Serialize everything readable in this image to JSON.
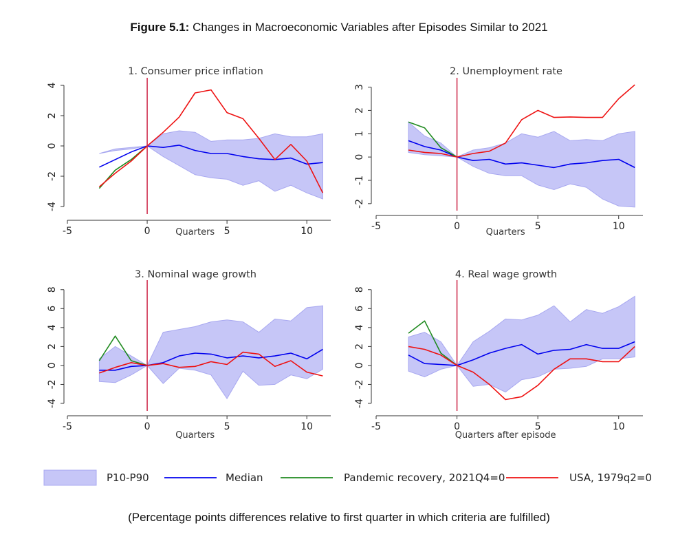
{
  "figure": {
    "title_bold": "Figure 5.1:",
    "title_rest": " Changes in Macroeconomic Variables after Episodes Similar to 2021",
    "footnote": "(Percentage points differences relative to first quarter in which criteria are fulfilled)"
  },
  "legend": [
    {
      "label": "P10-P90",
      "kind": "band",
      "color": "#c6c6f7",
      "edge": "#a8a8f0"
    },
    {
      "label": "Median",
      "kind": "line",
      "color": "#0000ee"
    },
    {
      "label": "Pandemic recovery, 2021Q4=0",
      "kind": "line",
      "color": "#1f8a1f"
    },
    {
      "label": "USA, 1979q2=0",
      "kind": "line",
      "color": "#ee1111"
    }
  ],
  "colors": {
    "band": "#c6c6f7",
    "band_edge": "#a8a8f0",
    "median": "#0000ee",
    "pandemic": "#1f8a1f",
    "usa": "#ee1111",
    "vline": "#cc2244"
  },
  "chart_data": [
    {
      "type": "line",
      "title": "1. Consumer price inflation",
      "xlabel": "Quarters",
      "xlim": [
        -5,
        11.5
      ],
      "xticks": [
        -5,
        0,
        5,
        10
      ],
      "ylim": [
        -4.5,
        4.5
      ],
      "yticks": [
        -4,
        -2,
        0,
        2,
        4
      ],
      "ytick_labels": [
        "-4",
        "-2",
        "0",
        "2",
        "4"
      ],
      "x": [
        -3,
        -2,
        -1,
        0,
        1,
        2,
        3,
        4,
        5,
        6,
        7,
        8,
        9,
        10,
        11
      ],
      "band": {
        "name": "P10-P90",
        "low": [
          -0.5,
          -0.3,
          -0.2,
          0,
          -0.7,
          -1.3,
          -1.9,
          -2.1,
          -2.2,
          -2.6,
          -2.3,
          -3.0,
          -2.6,
          -3.1,
          -3.5
        ],
        "high": [
          -0.5,
          -0.2,
          -0.1,
          0,
          0.8,
          1.0,
          0.9,
          0.3,
          0.4,
          0.4,
          0.5,
          0.8,
          0.6,
          0.6,
          0.8
        ]
      },
      "series": [
        {
          "name": "Median",
          "values": [
            -1.4,
            -0.9,
            -0.4,
            0,
            -0.1,
            0.05,
            -0.3,
            -0.5,
            -0.5,
            -0.7,
            -0.85,
            -0.9,
            -0.8,
            -1.2,
            -1.1
          ]
        },
        {
          "name": "Pandemic recovery, 2021Q4=0",
          "values": [
            -2.8,
            -1.6,
            -0.9,
            0,
            null,
            null,
            null,
            null,
            null,
            null,
            null,
            null,
            null,
            null,
            null
          ]
        },
        {
          "name": "USA, 1979q2=0",
          "values": [
            -2.7,
            -1.8,
            -1.0,
            0,
            0.9,
            1.9,
            3.5,
            3.7,
            2.2,
            1.8,
            0.5,
            -0.9,
            0.1,
            -1.0,
            -3.1
          ]
        }
      ]
    },
    {
      "type": "line",
      "title": "2. Unemployment rate",
      "xlabel": "Quarters",
      "xlim": [
        -5,
        11.5
      ],
      "xticks": [
        -5,
        0,
        5,
        10
      ],
      "ylim": [
        -2.3,
        3.4
      ],
      "yticks": [
        -2,
        -1,
        0,
        1,
        2,
        3
      ],
      "ytick_labels": [
        "-2",
        "-1",
        "0",
        "1",
        "2",
        "3"
      ],
      "x": [
        -3,
        -2,
        -1,
        0,
        1,
        2,
        3,
        4,
        5,
        6,
        7,
        8,
        9,
        10,
        11
      ],
      "band": {
        "name": "P10-P90",
        "low": [
          0.2,
          0.1,
          0.05,
          0,
          -0.4,
          -0.7,
          -0.8,
          -0.8,
          -1.2,
          -1.4,
          -1.15,
          -1.3,
          -1.8,
          -2.1,
          -2.15
        ],
        "high": [
          1.5,
          0.9,
          0.6,
          0,
          0.3,
          0.4,
          0.6,
          1.0,
          0.85,
          1.1,
          0.7,
          0.75,
          0.7,
          1.0,
          1.1
        ]
      },
      "series": [
        {
          "name": "Median",
          "values": [
            0.7,
            0.45,
            0.3,
            0,
            -0.15,
            -0.1,
            -0.3,
            -0.25,
            -0.35,
            -0.45,
            -0.3,
            -0.25,
            -0.15,
            -0.1,
            -0.45
          ]
        },
        {
          "name": "Pandemic recovery, 2021Q4=0",
          "values": [
            1.5,
            1.25,
            0.4,
            0,
            null,
            null,
            null,
            null,
            null,
            null,
            null,
            null,
            null,
            null,
            null
          ]
        },
        {
          "name": "USA, 1979q2=0",
          "values": [
            0.3,
            0.2,
            0.15,
            0,
            0.15,
            0.25,
            0.6,
            1.6,
            2.0,
            1.7,
            1.72,
            1.7,
            1.7,
            2.5,
            3.1
          ]
        }
      ]
    },
    {
      "type": "line",
      "title": "3. Nominal wage growth",
      "xlabel": "Quarters",
      "xlim": [
        -5,
        11.5
      ],
      "xticks": [
        -5,
        0,
        5,
        10
      ],
      "ylim": [
        -4.8,
        9.0
      ],
      "yticks": [
        -4,
        -2,
        0,
        2,
        4,
        6,
        8
      ],
      "ytick_labels": [
        "-4",
        "-2",
        "0",
        "2",
        "4",
        "6",
        "8"
      ],
      "x": [
        -3,
        -2,
        -1,
        0,
        1,
        2,
        3,
        4,
        5,
        6,
        7,
        8,
        9,
        10,
        11
      ],
      "band": {
        "name": "P10-P90",
        "low": [
          -1.7,
          -1.8,
          -1.0,
          0,
          -1.9,
          -0.3,
          -0.5,
          -1.0,
          -3.5,
          -0.6,
          -2.1,
          -2.0,
          -1.0,
          -1.4,
          -0.4
        ],
        "high": [
          0.7,
          2.0,
          1.0,
          0,
          3.5,
          3.8,
          4.1,
          4.6,
          4.8,
          4.6,
          3.5,
          4.9,
          4.7,
          6.1,
          6.3
        ]
      },
      "series": [
        {
          "name": "Median",
          "values": [
            -0.5,
            -0.5,
            -0.1,
            0,
            0.3,
            1.0,
            1.3,
            1.2,
            0.8,
            1.0,
            0.8,
            1.0,
            1.3,
            0.7,
            1.7
          ]
        },
        {
          "name": "Pandemic recovery, 2021Q4=0",
          "values": [
            0.5,
            3.1,
            0.5,
            0,
            null,
            null,
            null,
            null,
            null,
            null,
            null,
            null,
            null,
            null,
            null
          ]
        },
        {
          "name": "USA, 1979q2=0",
          "values": [
            -0.8,
            -0.2,
            0.3,
            0,
            0.2,
            -0.2,
            -0.1,
            0.4,
            0.1,
            1.4,
            1.2,
            -0.1,
            0.5,
            -0.7,
            -1.1
          ]
        }
      ]
    },
    {
      "type": "line",
      "title": "4. Real wage growth",
      "xlabel": "Quarters after episode",
      "xlim": [
        -5,
        11.5
      ],
      "xticks": [
        -5,
        0,
        5,
        10
      ],
      "ylim": [
        -4.8,
        9.0
      ],
      "yticks": [
        -4,
        -2,
        0,
        2,
        4,
        6,
        8
      ],
      "ytick_labels": [
        "-4",
        "-2",
        "0",
        "2",
        "4",
        "6",
        "8"
      ],
      "x": [
        -3,
        -2,
        -1,
        0,
        1,
        2,
        3,
        4,
        5,
        6,
        7,
        8,
        9,
        10,
        11
      ],
      "band": {
        "name": "P10-P90",
        "low": [
          -0.6,
          -1.2,
          -0.4,
          0,
          -2.2,
          -2.0,
          -2.8,
          -1.5,
          -1.2,
          -0.4,
          -0.3,
          -0.1,
          0.7,
          0.7,
          0.9
        ],
        "high": [
          3.0,
          3.5,
          2.5,
          0,
          2.5,
          3.6,
          4.9,
          4.8,
          5.3,
          6.3,
          4.6,
          5.9,
          5.5,
          6.2,
          7.3
        ]
      },
      "series": [
        {
          "name": "Median",
          "values": [
            1.1,
            0.2,
            0.1,
            0,
            0.6,
            1.3,
            1.8,
            2.2,
            1.2,
            1.6,
            1.7,
            2.2,
            1.8,
            1.8,
            2.5
          ]
        },
        {
          "name": "Pandemic recovery, 2021Q4=0",
          "values": [
            3.4,
            4.7,
            1.3,
            0,
            null,
            null,
            null,
            null,
            null,
            null,
            null,
            null,
            null,
            null,
            null
          ]
        },
        {
          "name": "USA, 1979q2=0",
          "values": [
            2.0,
            1.7,
            1.1,
            0,
            -0.7,
            -2.0,
            -3.6,
            -3.3,
            -2.1,
            -0.4,
            0.7,
            0.7,
            0.4,
            0.4,
            2.0
          ]
        }
      ]
    }
  ]
}
